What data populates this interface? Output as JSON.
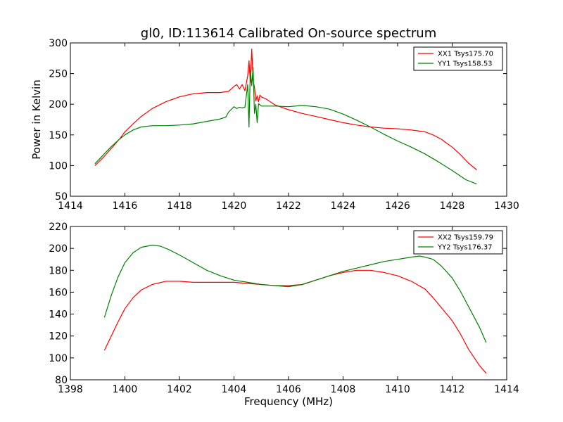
{
  "chart_data": [
    {
      "type": "line",
      "title": "gl0, ID:113614 Calibrated On-source spectrum",
      "xlabel": "",
      "ylabel": "Power in Kelvin",
      "xlim": [
        1414,
        1430
      ],
      "ylim": [
        50,
        300
      ],
      "xticks": [
        1414,
        1416,
        1418,
        1420,
        1422,
        1424,
        1426,
        1428,
        1430
      ],
      "yticks": [
        50,
        100,
        150,
        200,
        250,
        300
      ],
      "legend_position": "top-right",
      "series": [
        {
          "name": "XX1 Tsys175.70",
          "color": "#ff0000",
          "x": [
            1414.9,
            1415.2,
            1415.5,
            1415.8,
            1416.0,
            1416.3,
            1416.6,
            1417.0,
            1417.5,
            1418.0,
            1418.5,
            1419.0,
            1419.5,
            1419.8,
            1420.0,
            1420.1,
            1420.2,
            1420.3,
            1420.4,
            1420.5,
            1420.55,
            1420.6,
            1420.65,
            1420.7,
            1420.75,
            1420.8,
            1420.85,
            1420.9,
            1420.95,
            1421.0,
            1421.2,
            1421.5,
            1422.0,
            1422.5,
            1423.0,
            1423.5,
            1424.0,
            1424.5,
            1425.0,
            1425.5,
            1426.0,
            1426.5,
            1427.0,
            1427.3,
            1427.6,
            1428.0,
            1428.3,
            1428.6,
            1428.9
          ],
          "y": [
            100,
            113,
            128,
            143,
            155,
            168,
            180,
            193,
            204,
            212,
            217,
            219,
            219,
            221,
            229,
            232,
            225,
            232,
            222,
            246,
            271,
            235,
            290,
            240,
            228,
            205,
            214,
            204,
            215,
            212,
            208,
            199,
            191,
            185,
            180,
            175,
            170,
            166,
            163,
            161,
            160,
            158,
            155,
            150,
            143,
            130,
            118,
            104,
            93
          ]
        },
        {
          "name": "YY1 Tsys158.53",
          "color": "#008000",
          "x": [
            1414.9,
            1415.2,
            1415.5,
            1415.8,
            1416.0,
            1416.3,
            1416.6,
            1417.0,
            1417.5,
            1418.0,
            1418.5,
            1419.0,
            1419.5,
            1419.7,
            1419.8,
            1420.0,
            1420.1,
            1420.2,
            1420.3,
            1420.4,
            1420.5,
            1420.55,
            1420.6,
            1420.65,
            1420.7,
            1420.75,
            1420.8,
            1420.85,
            1420.9,
            1421.0,
            1421.5,
            1422.0,
            1422.5,
            1423.0,
            1423.5,
            1424.0,
            1424.5,
            1425.0,
            1425.5,
            1426.0,
            1426.5,
            1427.0,
            1427.5,
            1428.0,
            1428.5,
            1428.9
          ],
          "y": [
            103,
            117,
            131,
            143,
            150,
            158,
            163,
            165,
            165,
            166,
            168,
            172,
            176,
            179,
            187,
            196,
            193,
            195,
            194,
            195,
            232,
            163,
            255,
            230,
            260,
            185,
            200,
            170,
            201,
            197,
            197,
            196,
            198,
            196,
            192,
            184,
            174,
            163,
            151,
            140,
            130,
            119,
            106,
            92,
            77,
            70
          ]
        }
      ]
    },
    {
      "type": "line",
      "title": "",
      "xlabel": "Frequency (MHz)",
      "ylabel": "",
      "xlim": [
        1398,
        1414
      ],
      "ylim": [
        80,
        220
      ],
      "xticks": [
        1398,
        1400,
        1402,
        1404,
        1406,
        1408,
        1410,
        1412,
        1414
      ],
      "yticks": [
        80,
        100,
        120,
        140,
        160,
        180,
        200,
        220
      ],
      "legend_position": "top-right",
      "series": [
        {
          "name": "XX2 Tsys159.79",
          "color": "#ff0000",
          "x": [
            1399.25,
            1399.5,
            1399.75,
            1400.0,
            1400.3,
            1400.6,
            1401.0,
            1401.5,
            1402.0,
            1402.5,
            1403.0,
            1403.5,
            1404.0,
            1404.5,
            1405.0,
            1405.5,
            1406.0,
            1406.5,
            1407.0,
            1407.5,
            1408.0,
            1408.5,
            1409.0,
            1409.5,
            1410.0,
            1410.5,
            1411.0,
            1411.3,
            1411.6,
            1412.0,
            1412.3,
            1412.6,
            1413.0,
            1413.25
          ],
          "y": [
            107,
            120,
            133,
            145,
            155,
            162,
            167,
            170,
            170,
            169,
            169,
            169,
            169,
            168,
            167,
            166,
            166,
            167,
            171,
            175,
            178,
            180,
            180,
            178,
            175,
            170,
            163,
            155,
            146,
            134,
            122,
            108,
            93,
            86
          ]
        },
        {
          "name": "YY2 Tsys176.37",
          "color": "#008000",
          "x": [
            1399.25,
            1399.5,
            1399.75,
            1400.0,
            1400.3,
            1400.6,
            1401.0,
            1401.3,
            1401.6,
            1402.0,
            1402.5,
            1403.0,
            1403.5,
            1404.0,
            1404.5,
            1405.0,
            1405.5,
            1406.0,
            1406.5,
            1407.0,
            1407.5,
            1408.0,
            1408.5,
            1409.0,
            1409.5,
            1410.0,
            1410.5,
            1410.8,
            1411.0,
            1411.3,
            1411.6,
            1412.0,
            1412.3,
            1412.6,
            1413.0,
            1413.25
          ],
          "y": [
            137,
            157,
            174,
            187,
            196,
            201,
            203,
            202,
            199,
            194,
            187,
            180,
            175,
            171,
            169,
            167,
            166,
            165,
            167,
            171,
            175,
            179,
            182,
            185,
            188,
            190,
            192,
            193,
            192,
            190,
            184,
            173,
            161,
            147,
            128,
            114
          ]
        }
      ]
    }
  ]
}
